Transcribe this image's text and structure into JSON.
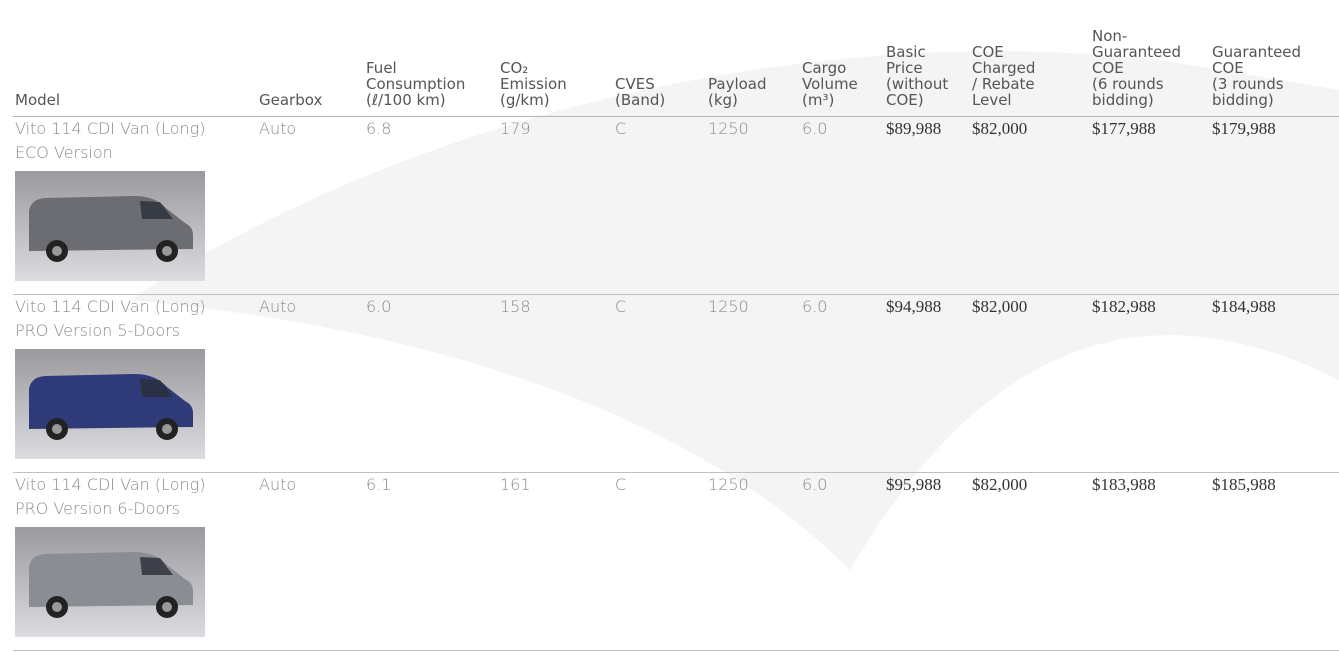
{
  "table": {
    "headers": [
      [
        "Model"
      ],
      [
        "Gearbox"
      ],
      [
        "Fuel",
        "Consumption",
        "(ℓ/100 km)"
      ],
      [
        "CO₂",
        "Emission",
        "(g/km)"
      ],
      [
        "CVES",
        "(Band)"
      ],
      [
        "Payload",
        "(kg)"
      ],
      [
        "Cargo",
        "Volume",
        "(m³)"
      ],
      [
        "Basic",
        "Price",
        "(without",
        "COE)"
      ],
      [
        "COE",
        "Charged",
        "/ Rebate",
        "Level"
      ],
      [
        "Non-",
        "Guaranteed",
        "COE",
        "(6 rounds",
        "bidding)"
      ],
      [
        "Guaranteed",
        "COE",
        "(3 rounds",
        "bidding)"
      ]
    ],
    "rows": [
      [
        [
          "Vito 114 CDI Van (Long)",
          "ECO Version"
        ],
        "Auto",
        "6.8",
        "179",
        "C",
        "1250",
        "6.0",
        "$89,988",
        "$82,000",
        "$177,988",
        "$179,988"
      ],
      [
        [
          "Vito 114 CDI Van (Long)",
          "PRO Version 5-Doors"
        ],
        "Auto",
        "6.0",
        "158",
        "C",
        "1250",
        "6.0",
        "$94,988",
        "$82,000",
        "$182,988",
        "$184,988"
      ],
      [
        [
          "Vito 114 CDI Van (Long)",
          "PRO Version 6-Doors"
        ],
        "Auto",
        "6.1",
        "161",
        "C",
        "1250",
        "6.0",
        "$95,988",
        "$82,000",
        "$183,988",
        "$185,988"
      ]
    ]
  }
}
